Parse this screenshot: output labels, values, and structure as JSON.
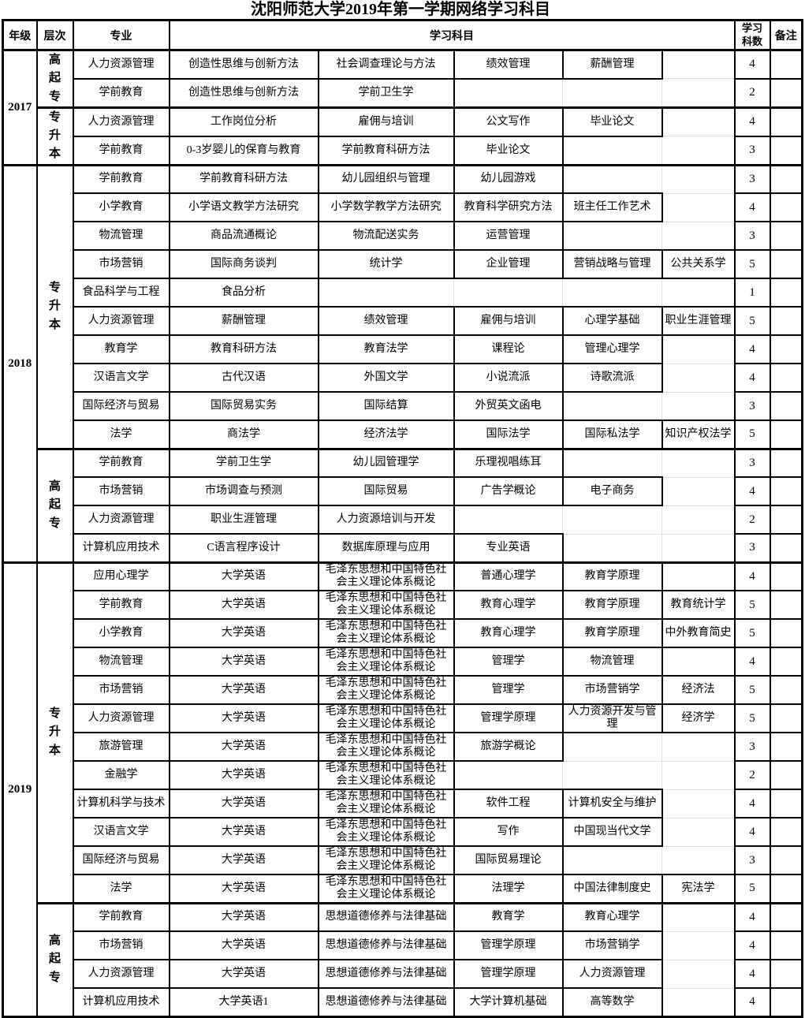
{
  "title": "沈阳师范大学2019年第一学期网络学习科目",
  "colors": {
    "border": "#000000",
    "gridline": "#d8deea",
    "background": "#ffffff"
  },
  "header": {
    "year": "年级",
    "level": "层次",
    "major": "专业",
    "subjects": "学习科目",
    "count": "学习\n科数",
    "note": "备注"
  },
  "groups": [
    {
      "year": "2017",
      "levels": [
        {
          "name": "高起专",
          "rows": [
            {
              "major": "人力资源管理",
              "subjects": [
                "创造性思维与创新方法",
                "社会调查理论与方法",
                "绩效管理",
                "薪酬管理",
                ""
              ],
              "count": "4",
              "note": ""
            },
            {
              "major": "学前教育",
              "subjects": [
                "创造性思维与创新方法",
                "学前卫生学",
                "",
                "",
                ""
              ],
              "count": "2",
              "note": ""
            }
          ]
        },
        {
          "name": "专升本",
          "rows": [
            {
              "major": "人力资源管理",
              "subjects": [
                "工作岗位分析",
                "雇佣与培训",
                "公文写作",
                "毕业论文",
                ""
              ],
              "count": "4",
              "note": ""
            },
            {
              "major": "学前教育",
              "subjects": [
                "0-3岁婴儿的保育与教育",
                "学前教育科研方法",
                "毕业论文",
                "",
                ""
              ],
              "count": "3",
              "note": ""
            }
          ]
        }
      ]
    },
    {
      "year": "2018",
      "levels": [
        {
          "name": "专升本",
          "rows": [
            {
              "major": "学前教育",
              "subjects": [
                "学前教育科研方法",
                "幼儿园组织与管理",
                "幼儿园游戏",
                "",
                ""
              ],
              "count": "3",
              "note": ""
            },
            {
              "major": "小学教育",
              "subjects": [
                "小学语文教学方法研究",
                "小学数学教学方法研究",
                "教育科学研究方法",
                "班主任工作艺术",
                ""
              ],
              "count": "4",
              "note": ""
            },
            {
              "major": "物流管理",
              "subjects": [
                "商品流通概论",
                "物流配送实务",
                "运营管理",
                "",
                ""
              ],
              "count": "3",
              "note": ""
            },
            {
              "major": "市场营销",
              "subjects": [
                "国际商务谈判",
                "统计学",
                "企业管理",
                "营销战略与管理",
                "公共关系学"
              ],
              "count": "5",
              "note": ""
            },
            {
              "major": "食品科学与工程",
              "subjects": [
                "食品分析",
                "",
                "",
                "",
                ""
              ],
              "count": "1",
              "note": ""
            },
            {
              "major": "人力资源管理",
              "subjects": [
                "薪酬管理",
                "绩效管理",
                "雇佣与培训",
                "心理学基础",
                "职业生涯管理"
              ],
              "count": "5",
              "note": ""
            },
            {
              "major": "教育学",
              "subjects": [
                "教育科研方法",
                "教育法学",
                "课程论",
                "管理心理学",
                ""
              ],
              "count": "4",
              "note": ""
            },
            {
              "major": "汉语言文学",
              "subjects": [
                "古代汉语",
                "外国文学",
                "小说流派",
                "诗歌流派",
                ""
              ],
              "count": "4",
              "note": ""
            },
            {
              "major": "国际经济与贸易",
              "subjects": [
                "国际贸易实务",
                "国际结算",
                "外贸英文函电",
                "",
                ""
              ],
              "count": "3",
              "note": ""
            },
            {
              "major": "法学",
              "subjects": [
                "商法学",
                "经济法学",
                "国际法学",
                "国际私法学",
                "知识产权法学"
              ],
              "count": "5",
              "note": ""
            }
          ]
        },
        {
          "name": "高起专",
          "rows": [
            {
              "major": "学前教育",
              "subjects": [
                "学前卫生学",
                "幼儿园管理学",
                "乐理视唱练耳",
                "",
                ""
              ],
              "count": "3",
              "note": ""
            },
            {
              "major": "市场营销",
              "subjects": [
                "市场调查与预测",
                "国际贸易",
                "广告学概论",
                "电子商务",
                ""
              ],
              "count": "4",
              "note": ""
            },
            {
              "major": "人力资源管理",
              "subjects": [
                "职业生涯管理",
                "人力资源培训与开发",
                "",
                "",
                ""
              ],
              "count": "2",
              "note": ""
            },
            {
              "major": "计算机应用技术",
              "subjects": [
                "C语言程序设计",
                "数据库原理与应用",
                "专业英语",
                "",
                ""
              ],
              "count": "3",
              "note": ""
            }
          ]
        }
      ]
    },
    {
      "year": "2019",
      "levels": [
        {
          "name": "专升本",
          "rows": [
            {
              "major": "应用心理学",
              "subjects": [
                "大学英语",
                "毛泽东思想和中国特色社会主义理论体系概论",
                "普通心理学",
                "教育学原理",
                ""
              ],
              "count": "4",
              "note": ""
            },
            {
              "major": "学前教育",
              "subjects": [
                "大学英语",
                "毛泽东思想和中国特色社会主义理论体系概论",
                "教育心理学",
                "教育学原理",
                "教育统计学"
              ],
              "count": "5",
              "note": ""
            },
            {
              "major": "小学教育",
              "subjects": [
                "大学英语",
                "毛泽东思想和中国特色社会主义理论体系概论",
                "教育心理学",
                "教育学原理",
                "中外教育简史"
              ],
              "count": "5",
              "note": ""
            },
            {
              "major": "物流管理",
              "subjects": [
                "大学英语",
                "毛泽东思想和中国特色社会主义理论体系概论",
                "管理学",
                "物流管理",
                ""
              ],
              "count": "4",
              "note": ""
            },
            {
              "major": "市场营销",
              "subjects": [
                "大学英语",
                "毛泽东思想和中国特色社会主义理论体系概论",
                "管理学",
                "市场营销学",
                "经济法"
              ],
              "count": "5",
              "note": ""
            },
            {
              "major": "人力资源管理",
              "subjects": [
                "大学英语",
                "毛泽东思想和中国特色社会主义理论体系概论",
                "管理学原理",
                "人力资源开发与管理",
                "经济学"
              ],
              "count": "5",
              "note": ""
            },
            {
              "major": "旅游管理",
              "subjects": [
                "大学英语",
                "毛泽东思想和中国特色社会主义理论体系概论",
                "旅游学概论",
                "",
                ""
              ],
              "count": "3",
              "note": ""
            },
            {
              "major": "金融学",
              "subjects": [
                "大学英语",
                "毛泽东思想和中国特色社会主义理论体系概论",
                "",
                "",
                ""
              ],
              "count": "2",
              "note": ""
            },
            {
              "major": "计算机科学与技术",
              "subjects": [
                "大学英语",
                "毛泽东思想和中国特色社会主义理论体系概论",
                "软件工程",
                "计算机安全与维护",
                ""
              ],
              "count": "4",
              "note": ""
            },
            {
              "major": "汉语言文学",
              "subjects": [
                "大学英语",
                "毛泽东思想和中国特色社会主义理论体系概论",
                "写作",
                "中国现当代文学",
                ""
              ],
              "count": "4",
              "note": ""
            },
            {
              "major": "国际经济与贸易",
              "subjects": [
                "大学英语",
                "毛泽东思想和中国特色社会主义理论体系概论",
                "国际贸易理论",
                "",
                ""
              ],
              "count": "3",
              "note": ""
            },
            {
              "major": "法学",
              "subjects": [
                "大学英语",
                "毛泽东思想和中国特色社会主义理论体系概论",
                "法理学",
                "中国法律制度史",
                "宪法学"
              ],
              "count": "5",
              "note": ""
            }
          ]
        },
        {
          "name": "高起专",
          "rows": [
            {
              "major": "学前教育",
              "subjects": [
                "大学英语",
                "思想道德修养与法律基础",
                "教育学",
                "教育心理学",
                ""
              ],
              "count": "4",
              "note": ""
            },
            {
              "major": "市场营销",
              "subjects": [
                "大学英语",
                "思想道德修养与法律基础",
                "管理学原理",
                "市场营销学",
                ""
              ],
              "count": "4",
              "note": ""
            },
            {
              "major": "人力资源管理",
              "subjects": [
                "大学英语",
                "思想道德修养与法律基础",
                "管理学原理",
                "人力资源管理",
                ""
              ],
              "count": "4",
              "note": ""
            },
            {
              "major": "计算机应用技术",
              "subjects": [
                "大学英语1",
                "思想道德修养与法律基础",
                "大学计算机基础",
                "高等数学",
                ""
              ],
              "count": "4",
              "note": ""
            }
          ]
        }
      ]
    }
  ]
}
